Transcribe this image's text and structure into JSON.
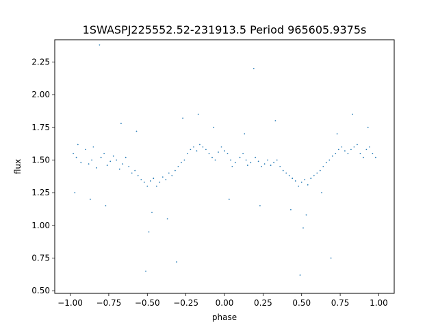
{
  "chart_data": {
    "type": "scatter",
    "title": "1SWASPJ225552.52-231913.5 Period 965605.9375s",
    "xlabel": "phase",
    "ylabel": "flux",
    "xlim": [
      -1.1,
      1.1
    ],
    "ylim": [
      0.48,
      2.42
    ],
    "grid": false,
    "legend": "none",
    "marker_color": "#1f77b4",
    "x_ticks": [
      -1.0,
      -0.75,
      -0.5,
      -0.25,
      0.0,
      0.25,
      0.5,
      0.75,
      1.0
    ],
    "x_tick_labels": [
      "−1.00",
      "−0.75",
      "−0.50",
      "−0.25",
      "0.00",
      "0.25",
      "0.50",
      "0.75",
      "1.00"
    ],
    "y_ticks": [
      0.5,
      0.75,
      1.0,
      1.25,
      1.5,
      1.75,
      2.0,
      2.25
    ],
    "y_tick_labels": [
      "0.50",
      "0.75",
      "1.00",
      "1.25",
      "1.50",
      "1.75",
      "2.00",
      "2.25"
    ],
    "series": [
      {
        "x": [
          -0.98,
          -0.96,
          -0.95,
          -0.93,
          -0.9,
          -0.88,
          -0.86,
          -0.85,
          -0.83,
          -0.8,
          -0.78,
          -0.76,
          -0.74,
          -0.72,
          -0.7,
          -0.68,
          -0.66,
          -0.64,
          -0.62,
          -0.6,
          -0.58,
          -0.56,
          -0.54,
          -0.52,
          -0.5,
          -0.48,
          -0.46,
          -0.44,
          -0.42,
          -0.4,
          -0.38,
          -0.36,
          -0.34,
          -0.32,
          -0.3,
          -0.28,
          -0.26,
          -0.24,
          -0.22,
          -0.2,
          -0.18,
          -0.16,
          -0.14,
          -0.12,
          -0.1,
          -0.08,
          -0.06,
          -0.04,
          -0.02,
          0.0,
          0.02,
          0.04,
          0.05,
          0.07,
          0.1,
          0.12,
          0.14,
          0.15,
          0.17,
          0.2,
          0.22,
          0.24,
          0.26,
          0.28,
          0.3,
          0.32,
          0.34,
          0.36,
          0.38,
          0.4,
          0.42,
          0.44,
          0.46,
          0.48,
          0.5,
          0.52,
          0.54,
          0.56,
          0.58,
          0.6,
          0.62,
          0.64,
          0.66,
          0.68,
          0.7,
          0.72,
          0.74,
          0.76,
          0.78,
          0.8,
          0.82,
          0.84,
          0.86,
          0.88,
          0.9,
          0.92,
          0.94,
          0.96,
          0.98,
          -0.97,
          -0.87,
          -0.77,
          -0.67,
          -0.57,
          -0.47,
          -0.37,
          -0.27,
          -0.17,
          -0.07,
          0.03,
          0.13,
          0.23,
          0.33,
          0.43,
          0.53,
          0.63,
          0.73,
          0.83,
          0.93,
          -0.51,
          -0.49,
          0.49,
          0.51,
          -0.31,
          0.69,
          -0.81,
          0.19
        ],
        "y": [
          1.55,
          1.52,
          1.62,
          1.48,
          1.58,
          1.47,
          1.5,
          1.6,
          1.44,
          1.52,
          1.55,
          1.46,
          1.49,
          1.53,
          1.5,
          1.43,
          1.47,
          1.52,
          1.45,
          1.4,
          1.42,
          1.38,
          1.35,
          1.33,
          1.3,
          1.34,
          1.36,
          1.3,
          1.33,
          1.37,
          1.35,
          1.4,
          1.38,
          1.42,
          1.45,
          1.48,
          1.5,
          1.55,
          1.58,
          1.6,
          1.57,
          1.62,
          1.6,
          1.58,
          1.55,
          1.52,
          1.5,
          1.56,
          1.6,
          1.57,
          1.55,
          1.5,
          1.45,
          1.48,
          1.52,
          1.55,
          1.5,
          1.46,
          1.48,
          1.52,
          1.49,
          1.45,
          1.47,
          1.5,
          1.46,
          1.48,
          1.5,
          1.45,
          1.42,
          1.4,
          1.38,
          1.36,
          1.34,
          1.3,
          1.33,
          1.35,
          1.31,
          1.36,
          1.38,
          1.4,
          1.42,
          1.45,
          1.48,
          1.5,
          1.53,
          1.55,
          1.58,
          1.6,
          1.57,
          1.55,
          1.58,
          1.6,
          1.62,
          1.55,
          1.52,
          1.58,
          1.6,
          1.55,
          1.52,
          1.25,
          1.2,
          1.15,
          1.78,
          1.72,
          1.1,
          1.05,
          1.82,
          1.85,
          1.75,
          1.2,
          1.7,
          1.15,
          1.8,
          1.12,
          1.08,
          1.25,
          1.7,
          1.85,
          1.75,
          0.65,
          0.95,
          0.62,
          0.98,
          0.72,
          0.75,
          2.38,
          2.2
        ],
        "name": ""
      }
    ]
  }
}
